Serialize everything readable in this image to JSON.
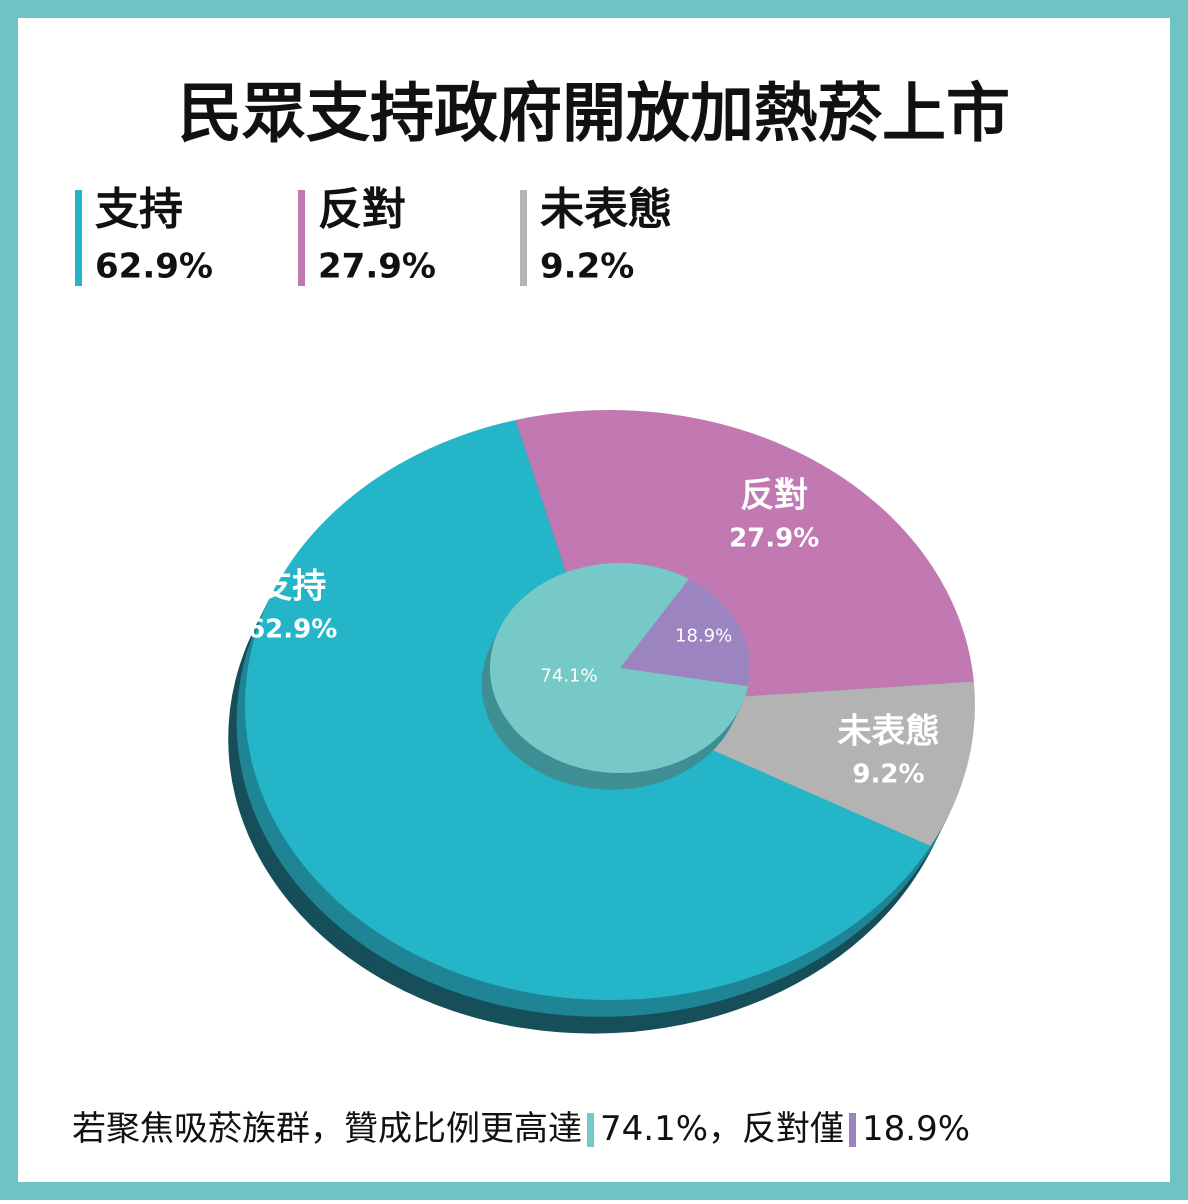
{
  "title": "民眾支持政府開放加熱菸上市",
  "chart_data": [
    {
      "type": "pie",
      "categories": [
        "支持",
        "反對",
        "未表態"
      ],
      "values": [
        62.9,
        27.9,
        9.2
      ],
      "value_labels": [
        "62.9%",
        "27.9%",
        "9.2%"
      ],
      "colors": [
        "#24b5c9",
        "#c278b0",
        "#b3b3b4"
      ]
    },
    {
      "type": "pie",
      "values": [
        74.1,
        18.9
      ],
      "value_labels": [
        "74.1%",
        "18.9%"
      ],
      "colors": [
        "#76c9c7",
        "#9b84c0"
      ]
    }
  ],
  "footer": {
    "text": "若聚焦吸菸族群，贊成比例更高達",
    "middle": "，反對僅"
  }
}
